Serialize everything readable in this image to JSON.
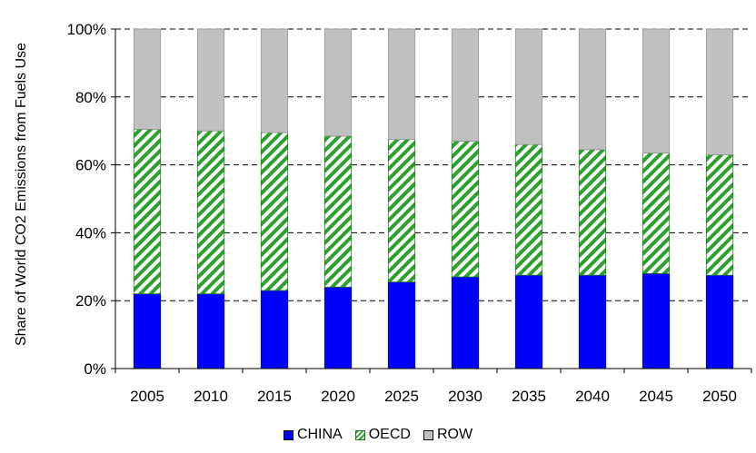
{
  "chart_data": {
    "type": "bar",
    "stacked": true,
    "categories": [
      "2005",
      "2010",
      "2015",
      "2020",
      "2025",
      "2030",
      "2035",
      "2040",
      "2045",
      "2050"
    ],
    "series": [
      {
        "name": "CHINA",
        "values": [
          22,
          22,
          23,
          24,
          25.5,
          27,
          27.5,
          27.5,
          28,
          27.5
        ],
        "color": "#0000ff"
      },
      {
        "name": "OECD",
        "values": [
          48.5,
          48,
          46.5,
          44.5,
          42,
          40,
          38.5,
          37,
          35.5,
          35.5
        ],
        "color": "#2ca02c",
        "pattern": "diagonal-hatch"
      },
      {
        "name": "ROW",
        "values": [
          29.5,
          30,
          30.5,
          31.5,
          32.5,
          33,
          34,
          35.5,
          36.5,
          37
        ],
        "color": "#c0c0c0"
      }
    ],
    "ylabel": "Share of World CO2 Emissions from Fuels Use",
    "xlabel": "",
    "ylim": [
      0,
      100
    ],
    "yticks": [
      "0%",
      "20%",
      "40%",
      "60%",
      "80%",
      "100%"
    ],
    "grid": "dashed horizontal",
    "legend_position": "bottom"
  }
}
